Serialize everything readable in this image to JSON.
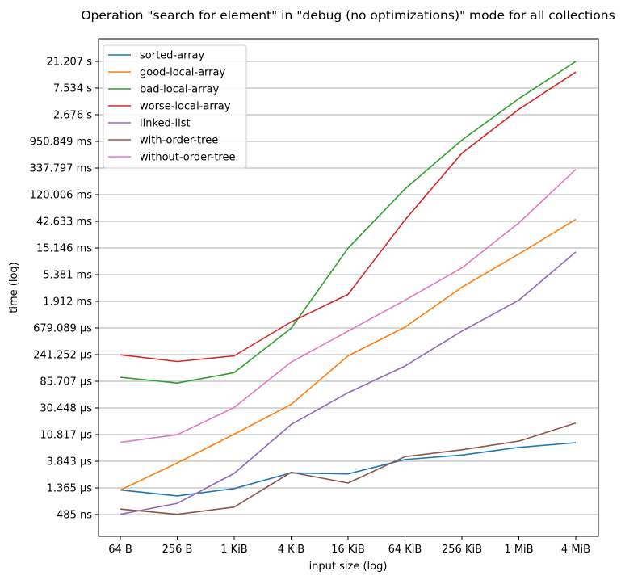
{
  "chart_data": {
    "type": "line",
    "title": "Operation \"search for element\" in \"debug (no optimizations)\" mode for all collections",
    "xlabel": "input size (log)",
    "ylabel": "time (log)",
    "yscale": "log",
    "grid": "horizontal",
    "legend_placement": "top-left",
    "categories": [
      "64 B",
      "256 B",
      "1 KiB",
      "4 KiB",
      "16 KiB",
      "64 KiB",
      "256 KiB",
      "1 MiB",
      "4 MiB"
    ],
    "y_ticks": [
      {
        "value_s": 4.85e-07,
        "label": "485 ns"
      },
      {
        "value_s": 1.365e-06,
        "label": "1.365 µs"
      },
      {
        "value_s": 3.843e-06,
        "label": "3.843 µs"
      },
      {
        "value_s": 1.0817e-05,
        "label": "10.817 µs"
      },
      {
        "value_s": 3.0448e-05,
        "label": "30.448 µs"
      },
      {
        "value_s": 8.5707e-05,
        "label": "85.707 µs"
      },
      {
        "value_s": 0.000241252,
        "label": "241.252 µs"
      },
      {
        "value_s": 0.000679089,
        "label": "679.089 µs"
      },
      {
        "value_s": 0.001912,
        "label": "1.912 ms"
      },
      {
        "value_s": 0.005381,
        "label": "5.381 ms"
      },
      {
        "value_s": 0.015146,
        "label": "15.146 ms"
      },
      {
        "value_s": 0.042633,
        "label": "42.633 ms"
      },
      {
        "value_s": 0.120006,
        "label": "120.006 ms"
      },
      {
        "value_s": 0.337797,
        "label": "337.797 ms"
      },
      {
        "value_s": 0.950849,
        "label": "950.849 ms"
      },
      {
        "value_s": 2.676,
        "label": "2.676 s"
      },
      {
        "value_s": 7.534,
        "label": "7.534 s"
      },
      {
        "value_s": 21.207,
        "label": "21.207 s"
      }
    ],
    "ylim_s": [
      2.5e-07,
      43.0
    ],
    "series": [
      {
        "name": "sorted-array",
        "color": "#1f77b4",
        "values": [
          1.26e-06,
          1e-06,
          1.33e-06,
          2.45e-06,
          2.35e-06,
          4.1e-06,
          4.9e-06,
          6.6e-06,
          7.9e-06
        ]
      },
      {
        "name": "good-local-array",
        "color": "#ff7f0e",
        "values": [
          1.26e-06,
          3.6e-06,
          1.1e-05,
          3.5e-05,
          0.00023,
          0.0007,
          0.0033,
          0.012,
          0.046
        ]
      },
      {
        "name": "bad-local-array",
        "color": "#2ca02c",
        "values": [
          0.0001,
          8e-05,
          0.00012,
          0.00067,
          0.015,
          0.15,
          1.0,
          5.0,
          21.2
        ]
      },
      {
        "name": "worse-local-array",
        "color": "#d62728",
        "values": [
          0.00024,
          0.000185,
          0.00023,
          0.00086,
          0.0025,
          0.045,
          0.6,
          3.3,
          14.0
        ]
      },
      {
        "name": "linked-list",
        "color": "#9467bd",
        "values": [
          4.9e-07,
          7.5e-07,
          2.4e-06,
          1.6e-05,
          5.5e-05,
          0.000155,
          0.0006,
          0.002,
          0.013
        ]
      },
      {
        "name": "with-order-tree",
        "color": "#8c564b",
        "values": [
          6e-07,
          4.9e-07,
          6.5e-07,
          2.5e-06,
          1.65e-06,
          4.6e-06,
          6e-06,
          8.4e-06,
          1.7e-05
        ]
      },
      {
        "name": "without-order-tree",
        "color": "#e377c2",
        "values": [
          8e-06,
          1.08e-05,
          3.1e-05,
          0.00018,
          0.0006,
          0.002,
          0.007,
          0.04,
          0.32
        ]
      }
    ]
  }
}
